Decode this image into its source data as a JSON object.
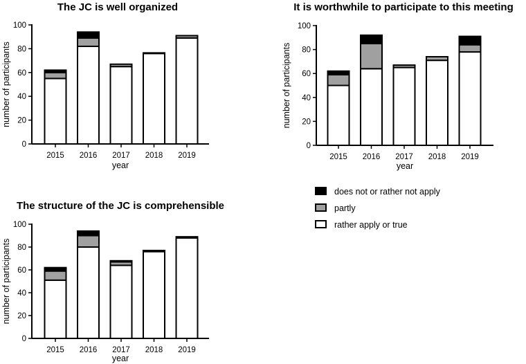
{
  "legend": {
    "items": [
      {
        "label": "does not or rather not apply",
        "color": "#000000"
      },
      {
        "label": "partly",
        "color": "#a0a0a0"
      },
      {
        "label": "rather apply or true",
        "color": "#ffffff"
      }
    ]
  },
  "chart_data": [
    {
      "type": "bar",
      "stacked": true,
      "title": "The JC is well organized",
      "xlabel": "year",
      "ylabel": "number of participants",
      "ylim": [
        0,
        100
      ],
      "yticks": [
        0,
        20,
        40,
        60,
        80,
        100
      ],
      "categories": [
        "2015",
        "2016",
        "2017",
        "2018",
        "2019"
      ],
      "series": [
        {
          "name": "rather apply or true",
          "color": "#ffffff",
          "values": [
            55,
            82,
            65,
            76,
            89
          ]
        },
        {
          "name": "partly",
          "color": "#a0a0a0",
          "values": [
            5,
            7,
            2,
            0.5,
            2
          ]
        },
        {
          "name": "does not or rather not apply",
          "color": "#000000",
          "values": [
            2,
            5,
            0,
            0,
            0
          ]
        }
      ]
    },
    {
      "type": "bar",
      "stacked": true,
      "title": "It is worthwhile to participate to this meeting",
      "xlabel": "year",
      "ylabel": "number of participants",
      "ylim": [
        0,
        100
      ],
      "yticks": [
        0,
        20,
        40,
        60,
        80,
        100
      ],
      "categories": [
        "2015",
        "2016",
        "2017",
        "2018",
        "2019"
      ],
      "series": [
        {
          "name": "rather apply or true",
          "color": "#ffffff",
          "values": [
            50,
            64,
            65,
            71,
            78
          ]
        },
        {
          "name": "partly",
          "color": "#a0a0a0",
          "values": [
            9,
            21,
            2,
            3,
            6
          ]
        },
        {
          "name": "does not or rather not apply",
          "color": "#000000",
          "values": [
            3,
            7,
            0,
            0,
            7
          ]
        }
      ]
    },
    {
      "type": "bar",
      "stacked": true,
      "title": "The structure of the JC is comprehensible",
      "xlabel": "year",
      "ylabel": "number of participants",
      "ylim": [
        0,
        100
      ],
      "yticks": [
        0,
        20,
        40,
        60,
        80,
        100
      ],
      "categories": [
        "2015",
        "2016",
        "2017",
        "2018",
        "2019"
      ],
      "series": [
        {
          "name": "rather apply or true",
          "color": "#ffffff",
          "values": [
            51,
            80,
            64,
            76,
            88
          ]
        },
        {
          "name": "partly",
          "color": "#a0a0a0",
          "values": [
            8,
            10,
            3,
            0,
            0
          ]
        },
        {
          "name": "does not or rather not apply",
          "color": "#000000",
          "values": [
            3,
            4,
            1,
            1,
            1
          ]
        }
      ]
    }
  ]
}
